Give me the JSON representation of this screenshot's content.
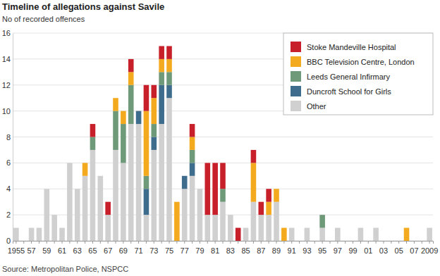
{
  "chart_data": {
    "type": "bar",
    "title": "Timeline of allegations against Savile",
    "y_label": "No of recorded offences",
    "source": "Source: Metropolitan Police, NSPCC",
    "stacked": true,
    "grid": true,
    "legend": "top-right",
    "categories": [
      "1955",
      null,
      "57",
      null,
      "59",
      null,
      "61",
      null,
      "63",
      null,
      "65",
      null,
      "67",
      null,
      "69",
      null,
      "71",
      null,
      "73",
      null,
      "75",
      null,
      "77",
      null,
      "79",
      null,
      "81",
      null,
      "83",
      null,
      "85",
      null,
      "87",
      null,
      "89",
      null,
      "91",
      null,
      "93",
      null,
      "95",
      null,
      "97",
      null,
      "99",
      null,
      "01",
      null,
      "03",
      null,
      "05",
      null,
      "07",
      null,
      "2009"
    ],
    "ylim": [
      0,
      16
    ],
    "yticks": [
      0,
      2,
      4,
      6,
      8,
      10,
      12,
      14,
      16
    ],
    "series": [
      {
        "name": "Stoke Mandeville Hospital",
        "color": "#c8202b",
        "values": [
          0,
          0,
          0,
          0,
          0,
          0,
          0,
          0,
          0,
          0,
          1,
          0,
          1,
          0,
          0,
          1,
          0,
          2,
          1,
          1,
          1,
          0,
          0,
          1,
          0,
          4,
          4,
          2,
          0,
          1,
          0,
          1,
          1,
          1,
          0,
          0,
          0,
          0,
          0,
          0,
          0,
          0,
          0,
          0,
          0,
          0,
          0,
          0,
          0,
          0,
          0,
          0,
          0,
          0,
          0
        ]
      },
      {
        "name": "BBC Television Centre, London",
        "color": "#f4aa1e",
        "values": [
          0,
          0,
          0,
          0,
          0,
          0,
          0,
          0,
          0,
          1,
          0,
          0,
          0,
          1,
          1,
          1,
          0,
          5,
          2,
          1,
          1,
          3,
          0,
          1,
          0,
          0,
          0,
          0,
          0,
          0,
          0,
          3,
          0,
          1,
          1,
          1,
          0,
          0,
          0,
          0,
          0,
          0,
          0,
          0,
          0,
          0,
          0,
          0,
          0,
          0,
          0,
          1,
          0,
          0,
          0
        ]
      },
      {
        "name": "Leeds General Infirmary",
        "color": "#6f9a7a",
        "values": [
          0,
          0,
          0,
          0,
          0,
          0,
          0,
          0,
          0,
          0,
          1,
          0,
          0,
          3,
          3,
          3,
          0,
          1,
          1,
          1,
          1,
          0,
          0,
          1,
          0,
          0,
          0,
          1,
          0,
          0,
          0,
          0,
          0,
          0,
          0,
          0,
          0,
          0,
          0,
          0,
          1,
          0,
          0,
          0,
          0,
          0,
          0,
          0,
          0,
          0,
          0,
          0,
          0,
          0,
          0
        ]
      },
      {
        "name": "Duncroft School for Girls",
        "color": "#3e6c8d",
        "values": [
          0,
          0,
          0,
          0,
          0,
          0,
          0,
          0,
          0,
          0,
          0,
          0,
          0,
          0,
          0,
          0,
          1,
          2,
          1,
          3,
          1,
          0,
          1,
          1,
          0,
          0,
          0,
          0,
          0,
          0,
          0,
          0,
          0,
          0,
          0,
          0,
          0,
          0,
          0,
          0,
          0,
          0,
          0,
          0,
          0,
          0,
          0,
          0,
          0,
          0,
          0,
          0,
          0,
          0,
          0
        ]
      },
      {
        "name": "Other",
        "color": "#d0d0d0",
        "values": [
          1,
          0,
          1,
          1,
          4,
          2,
          1,
          6,
          4,
          5,
          7,
          5,
          2,
          7,
          6,
          9,
          9,
          2,
          7,
          9,
          11,
          0,
          4,
          5,
          4,
          2,
          2,
          3,
          2,
          0,
          1,
          3,
          2,
          2,
          3,
          0,
          1,
          0,
          1,
          0,
          1,
          0,
          1,
          0,
          0,
          1,
          0,
          1,
          0,
          0,
          0,
          0,
          0,
          0,
          1
        ]
      }
    ]
  }
}
